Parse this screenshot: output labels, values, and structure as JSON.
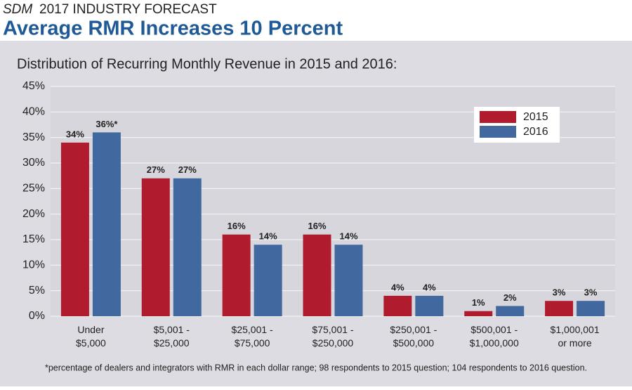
{
  "header": {
    "brand": "SDM",
    "kicker": "2017 INDUSTRY FORECAST",
    "title": "Average RMR Increases 10 Percent"
  },
  "chart_data": {
    "type": "bar",
    "title": "Distribution of Recurring Monthly Revenue in 2015 and 2016:",
    "categories": [
      [
        "Under",
        "$5,000"
      ],
      [
        "$5,001 -",
        "$25,000"
      ],
      [
        "$25,001 -",
        "$75,000"
      ],
      [
        "$75,001 -",
        "$250,000"
      ],
      [
        "$250,001 -",
        "$500,000"
      ],
      [
        "$500,001 -",
        "$1,000,000"
      ],
      [
        "$1,000,001",
        "or more"
      ]
    ],
    "series": [
      {
        "name": "2015",
        "color": "#b01c2e",
        "values": [
          34,
          27,
          16,
          16,
          4,
          1,
          3
        ],
        "value_labels": [
          "34%",
          "27%",
          "16%",
          "16%",
          "4%",
          "1%",
          "3%"
        ]
      },
      {
        "name": "2016",
        "color": "#41689f",
        "values": [
          36,
          27,
          14,
          14,
          4,
          2,
          3
        ],
        "value_labels": [
          "36%*",
          "27%",
          "14%",
          "14%",
          "4%",
          "2%",
          "3%"
        ]
      }
    ],
    "ylim": [
      0,
      45
    ],
    "yticks": [
      {
        "value": 0,
        "label": "0%"
      },
      {
        "value": 5,
        "label": "5%"
      },
      {
        "value": 10,
        "label": "10%"
      },
      {
        "value": 15,
        "label": "15%"
      },
      {
        "value": 20,
        "label": "20%"
      },
      {
        "value": 25,
        "label": "25%"
      },
      {
        "value": 30,
        "label": "30%"
      },
      {
        "value": 35,
        "label": "35%"
      },
      {
        "value": 40,
        "label": "40%"
      },
      {
        "value": 45,
        "label": "45%"
      }
    ],
    "grid": true,
    "legend": "upper right",
    "footnote": "*percentage of dealers and integrators with RMR in each dollar range; 98 respondents to 2015 question; 104 respondents to 2016 question."
  }
}
